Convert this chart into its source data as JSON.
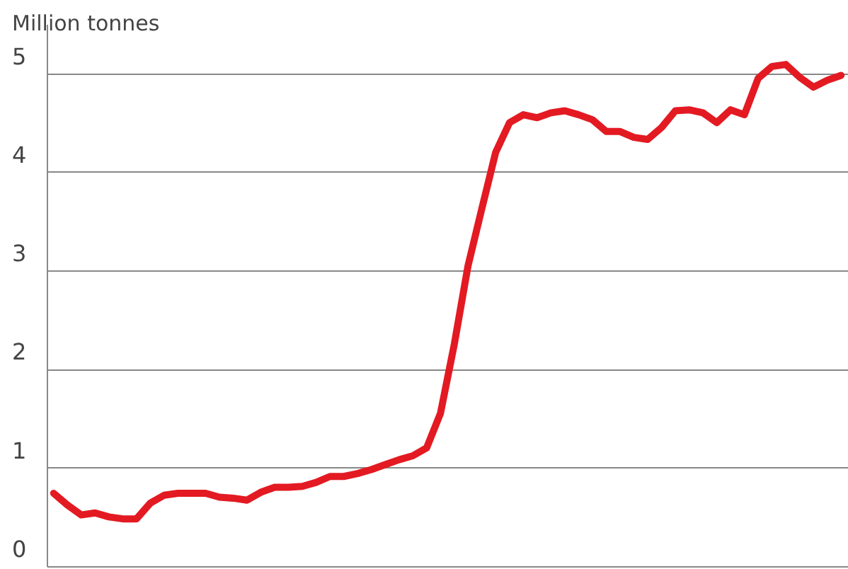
{
  "chart_data": {
    "type": "line",
    "ylabel": "Million tonnes",
    "categories": [
      null,
      null,
      null,
      null,
      null,
      null,
      null,
      null,
      null,
      null,
      null,
      null,
      null,
      null,
      null,
      null,
      null,
      null,
      null,
      null,
      null,
      null,
      null,
      null,
      null,
      null,
      null,
      null,
      null,
      null,
      null,
      null,
      null,
      null,
      null,
      null,
      null,
      null,
      null,
      null,
      null,
      null,
      null,
      null,
      null,
      null,
      null,
      null,
      null,
      null,
      null,
      null,
      null,
      null,
      null,
      null,
      null,
      null
    ],
    "values": [
      0.74,
      0.62,
      0.52,
      0.54,
      0.5,
      0.48,
      0.48,
      0.64,
      0.72,
      0.74,
      0.74,
      0.74,
      0.7,
      0.69,
      0.67,
      0.75,
      0.8,
      0.8,
      0.81,
      0.85,
      0.91,
      0.91,
      0.94,
      0.98,
      1.03,
      1.08,
      1.12,
      1.2,
      1.55,
      2.25,
      3.05,
      3.63,
      4.2,
      4.5,
      4.58,
      4.55,
      4.6,
      4.62,
      4.58,
      4.53,
      4.41,
      4.41,
      4.35,
      4.33,
      4.45,
      4.62,
      4.63,
      4.6,
      4.5,
      4.63,
      4.58,
      4.95,
      5.07,
      5.09,
      4.96,
      4.86,
      4.93,
      4.98
    ],
    "color": "#e31a22",
    "ylim": [
      0,
      5.5
    ],
    "yticks": [
      0,
      1,
      2,
      3,
      4,
      5
    ],
    "grid": "y",
    "tick_labels": "y"
  }
}
